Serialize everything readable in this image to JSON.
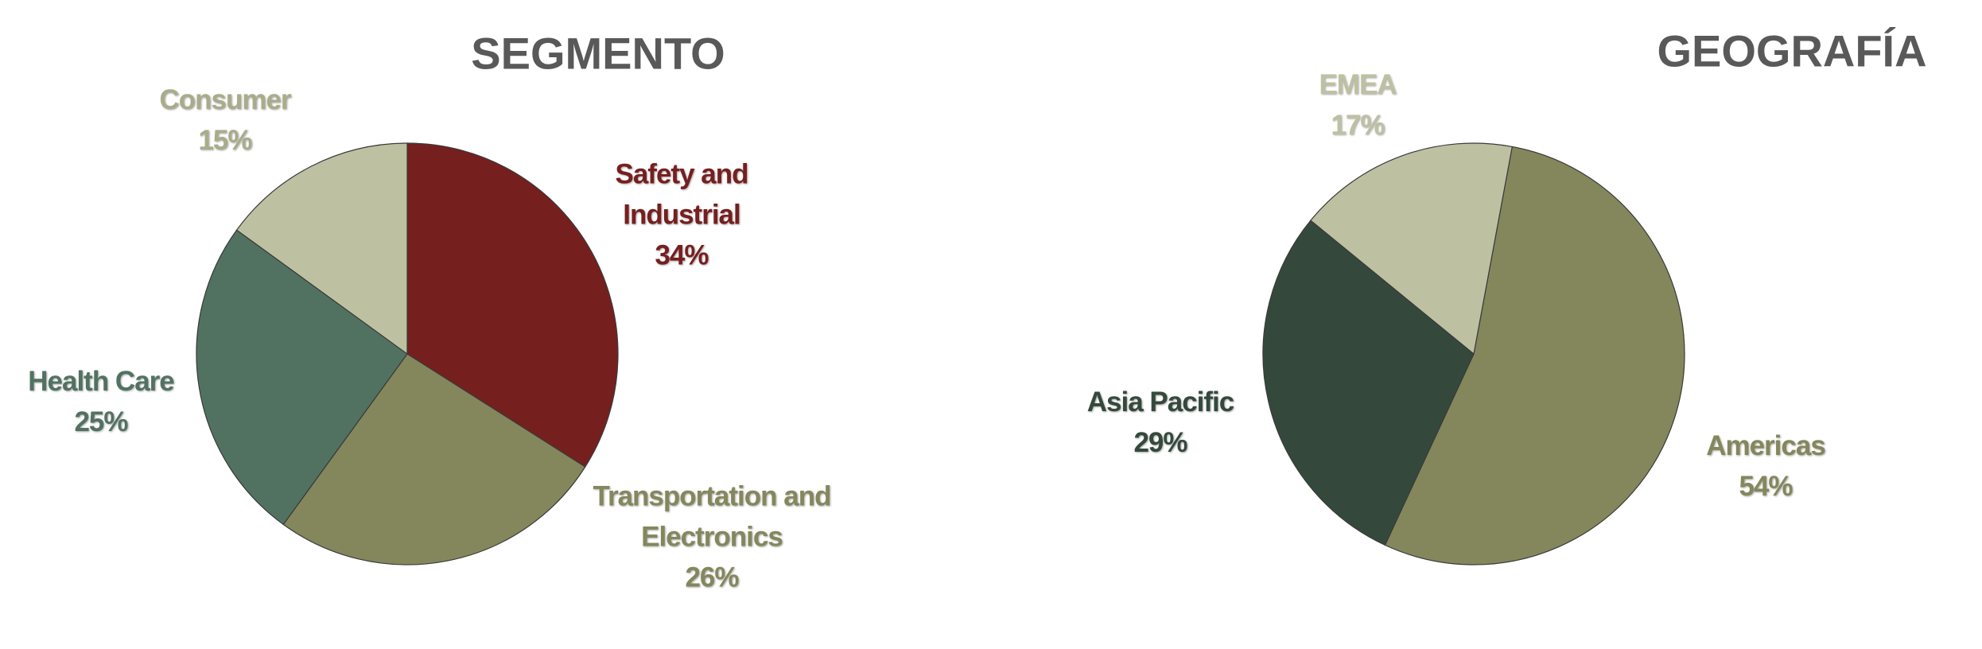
{
  "chart_data": [
    {
      "type": "pie",
      "title": "SEGMENTO",
      "categories": [
        "Safety and Industrial",
        "Transportation and Electronics",
        "Health Care",
        "Consumer"
      ],
      "values": [
        34,
        26,
        25,
        15
      ],
      "value_labels": [
        "34%",
        "26%",
        "25%",
        "15%"
      ],
      "colors": [
        "#761f1f",
        "#84875c",
        "#527261",
        "#bec1a1"
      ]
    },
    {
      "type": "pie",
      "title": "GEOGRAFÍA",
      "categories": [
        "Americas",
        "Asia Pacific",
        "EMEA"
      ],
      "values": [
        54,
        29,
        17
      ],
      "value_labels": [
        "54%",
        "29%",
        "17%"
      ],
      "colors": [
        "#84875c",
        "#34493c",
        "#bec1a1"
      ]
    }
  ]
}
